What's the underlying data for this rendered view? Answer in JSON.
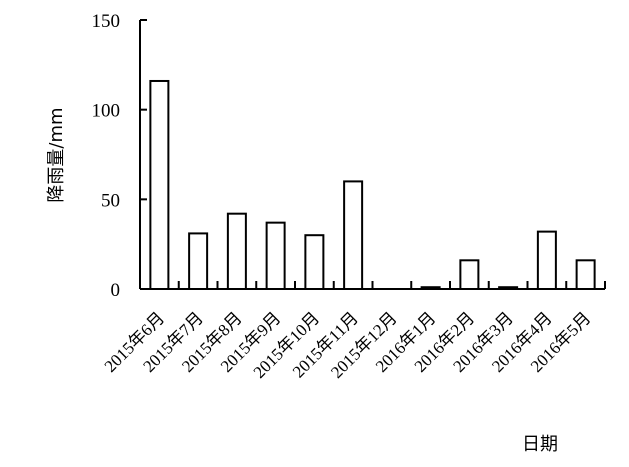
{
  "chart_data": {
    "type": "bar",
    "title": "",
    "xlabel": "日期",
    "ylabel": "降雨量/mm",
    "ylim": [
      0,
      150
    ],
    "yticks": [
      0,
      50,
      100,
      150
    ],
    "grid": false,
    "categories": [
      "2015年6月",
      "2015年7月",
      "2015年8月",
      "2015年9月",
      "2015年10月",
      "2015年11月",
      "2015年12月",
      "2016年1月",
      "2016年2月",
      "2016年3月",
      "2016年4月",
      "2016年5月"
    ],
    "values": [
      116,
      31,
      42,
      37,
      30,
      60,
      0,
      1,
      16,
      1,
      32,
      16
    ],
    "bar_fill": "#ffffff",
    "bar_stroke": "#000000"
  }
}
